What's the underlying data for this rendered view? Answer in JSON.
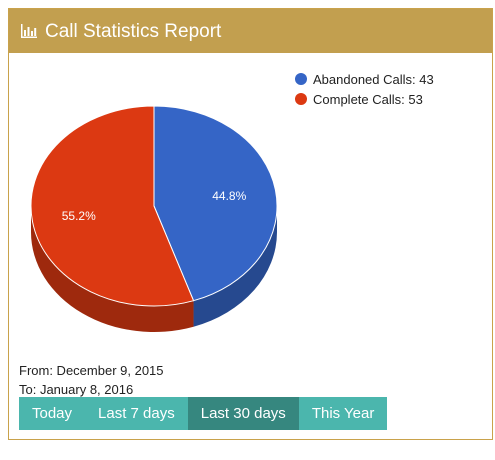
{
  "header": {
    "title": "Call Statistics Report",
    "icon": "bar-chart-icon"
  },
  "chart_data": {
    "type": "pie",
    "categories": [
      "Abandoned Calls",
      "Complete Calls"
    ],
    "values": [
      43,
      53
    ],
    "percent_labels": [
      "44.8%",
      "55.2%"
    ],
    "legend": [
      "Abandoned Calls: 43",
      "Complete Calls: 53"
    ],
    "colors": [
      "#3565c6",
      "#dc3912"
    ],
    "legend_position": "top-right"
  },
  "dates": {
    "from": "From: December 9, 2015",
    "to": "To: January 8, 2016"
  },
  "range_buttons": [
    {
      "label": "Today",
      "active": false
    },
    {
      "label": "Last 7 days",
      "active": false
    },
    {
      "label": "Last 30 days",
      "active": true
    },
    {
      "label": "This Year",
      "active": false
    }
  ]
}
